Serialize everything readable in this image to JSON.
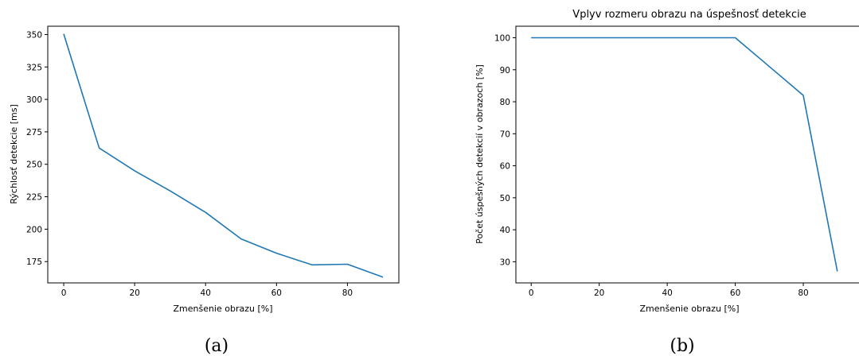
{
  "captions": [
    "(a)",
    "(b)"
  ],
  "chart_data": [
    {
      "type": "line",
      "title": "",
      "xlabel": "Zmenšenie obrazu [%]",
      "ylabel": "Rýchlosť detekcie [ms]",
      "x": [
        0,
        10,
        20,
        30,
        40,
        50,
        60,
        70,
        80,
        90
      ],
      "values": [
        350.5,
        262.5,
        245,
        229.5,
        213,
        192.5,
        181.5,
        172.5,
        173,
        163
      ],
      "xlim": [
        -4.5,
        94.5
      ],
      "ylim": [
        158.6,
        356.4
      ],
      "xticks": [
        0,
        20,
        40,
        60,
        80
      ],
      "yticks": [
        175,
        200,
        225,
        250,
        275,
        300,
        325,
        350
      ],
      "grid": false
    },
    {
      "type": "line",
      "title": "Vplyv rozmeru obrazu na úspešnosť detekcie",
      "xlabel": "Zmenšenie obrazu [%]",
      "ylabel": "Počet úspešných detekcií v obrazoch [%]",
      "x": [
        0,
        10,
        20,
        30,
        40,
        50,
        60,
        70,
        80,
        90
      ],
      "values": [
        100,
        100,
        100,
        100,
        100,
        100,
        100,
        91,
        82,
        27
      ],
      "xlim": [
        -4.5,
        94.5
      ],
      "ylim": [
        23.4,
        103.6
      ],
      "xticks": [
        0,
        20,
        40,
        60,
        80
      ],
      "yticks": [
        30,
        40,
        50,
        60,
        70,
        80,
        90,
        100
      ],
      "grid": false
    }
  ]
}
